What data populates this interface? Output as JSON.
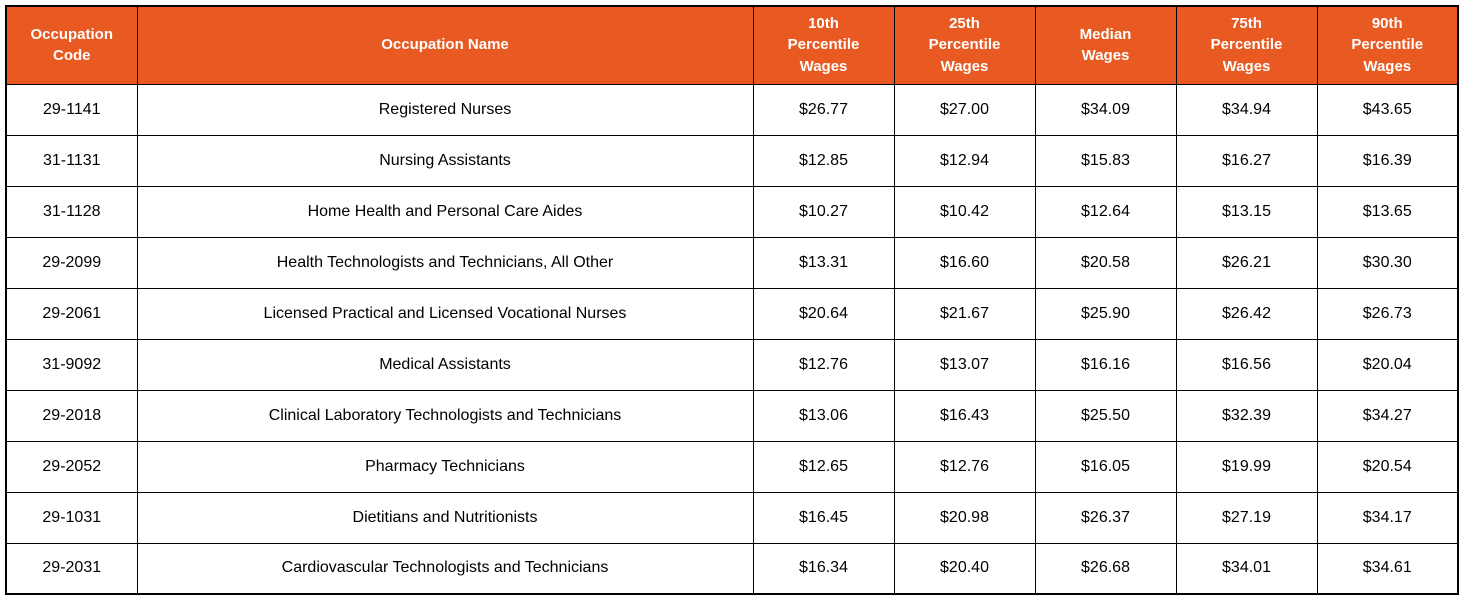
{
  "colors": {
    "header_bg": "#E95A23",
    "header_text": "#FFFFFF",
    "body_text": "#000000",
    "border": "#000000",
    "page_bg": "#FFFFFF"
  },
  "chart_data": {
    "type": "table",
    "columns": [
      "Occupation\nCode",
      "Occupation Name",
      "10th\nPercentile\nWages",
      "25th\nPercentile\nWages",
      "Median\nWages",
      "75th\nPercentile\nWages",
      "90th\nPercentile\nWages"
    ],
    "rows": [
      {
        "code": "29-1141",
        "name": "Registered Nurses",
        "p10": "$26.77",
        "p25": "$27.00",
        "median": "$34.09",
        "p75": "$34.94",
        "p90": "$43.65"
      },
      {
        "code": "31-1131",
        "name": "Nursing Assistants",
        "p10": "$12.85",
        "p25": "$12.94",
        "median": "$15.83",
        "p75": "$16.27",
        "p90": "$16.39"
      },
      {
        "code": "31-1128",
        "name": "Home Health and Personal Care Aides",
        "p10": "$10.27",
        "p25": "$10.42",
        "median": "$12.64",
        "p75": "$13.15",
        "p90": "$13.65"
      },
      {
        "code": "29-2099",
        "name": "Health Technologists and Technicians, All Other",
        "p10": "$13.31",
        "p25": "$16.60",
        "median": "$20.58",
        "p75": "$26.21",
        "p90": "$30.30"
      },
      {
        "code": "29-2061",
        "name": "Licensed Practical and Licensed Vocational Nurses",
        "p10": "$20.64",
        "p25": "$21.67",
        "median": "$25.90",
        "p75": "$26.42",
        "p90": "$26.73"
      },
      {
        "code": "31-9092",
        "name": "Medical Assistants",
        "p10": "$12.76",
        "p25": "$13.07",
        "median": "$16.16",
        "p75": "$16.56",
        "p90": "$20.04"
      },
      {
        "code": "29-2018",
        "name": "Clinical Laboratory Technologists and Technicians",
        "p10": "$13.06",
        "p25": "$16.43",
        "median": "$25.50",
        "p75": "$32.39",
        "p90": "$34.27"
      },
      {
        "code": "29-2052",
        "name": "Pharmacy Technicians",
        "p10": "$12.65",
        "p25": "$12.76",
        "median": "$16.05",
        "p75": "$19.99",
        "p90": "$20.54"
      },
      {
        "code": "29-1031",
        "name": "Dietitians and Nutritionists",
        "p10": "$16.45",
        "p25": "$20.98",
        "median": "$26.37",
        "p75": "$27.19",
        "p90": "$34.17"
      },
      {
        "code": "29-2031",
        "name": "Cardiovascular Technologists and Technicians",
        "p10": "$16.34",
        "p25": "$20.40",
        "median": "$26.68",
        "p75": "$34.01",
        "p90": "$34.61"
      }
    ]
  }
}
